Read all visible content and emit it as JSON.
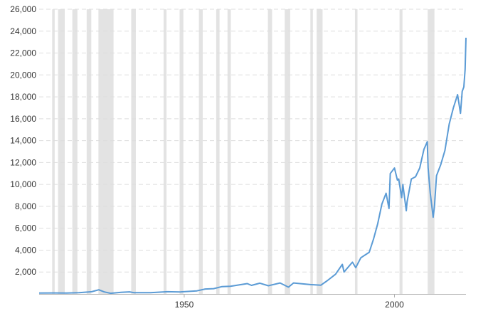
{
  "chart_data": {
    "type": "line",
    "title": "",
    "xlabel": "",
    "ylabel": "",
    "xlim": [
      1915.5,
      2017
    ],
    "ylim": [
      0,
      26000
    ],
    "grid": {
      "horizontal": true,
      "vertical": false,
      "style": "dashed"
    },
    "x_ticks": [
      1950,
      2000
    ],
    "x_tick_labels": [
      "1950",
      "2000"
    ],
    "y_ticks": [
      2000,
      4000,
      6000,
      8000,
      10000,
      12000,
      14000,
      16000,
      18000,
      20000,
      22000,
      24000,
      26000
    ],
    "y_tick_labels": [
      "2,000",
      "4,000",
      "6,000",
      "8,000",
      "10,000",
      "12,000",
      "14,000",
      "16,000",
      "18,000",
      "20,000",
      "22,000",
      "24,000",
      "26,000"
    ],
    "colors": {
      "line": "#5b9bd5",
      "recession_band": "#e3e3e3",
      "grid": "#dddddd",
      "axis": "#b0b0b0"
    },
    "recession_periods": [
      [
        1918.6,
        1919.2
      ],
      [
        1920.0,
        1921.6
      ],
      [
        1923.4,
        1924.6
      ],
      [
        1926.8,
        1927.9
      ],
      [
        1929.6,
        1933.2
      ],
      [
        1937.4,
        1938.5
      ],
      [
        1945.1,
        1945.8
      ],
      [
        1948.9,
        1949.8
      ],
      [
        1953.5,
        1954.4
      ],
      [
        1957.6,
        1958.4
      ],
      [
        1960.3,
        1961.1
      ],
      [
        1969.9,
        1970.9
      ],
      [
        1973.9,
        1975.2
      ],
      [
        1980.0,
        1980.6
      ],
      [
        1981.5,
        1982.9
      ],
      [
        1990.6,
        1991.2
      ],
      [
        2001.2,
        2001.9
      ],
      [
        2007.9,
        2009.5
      ]
    ],
    "series": [
      {
        "x": [
          1915.5,
          1919,
          1922,
          1925,
          1928,
          1929.7,
          1931,
          1932.5,
          1935,
          1937,
          1938,
          1942,
          1946,
          1949,
          1953,
          1955,
          1957,
          1959,
          1961,
          1965,
          1966,
          1968,
          1970,
          1972.8,
          1974.8,
          1976,
          1980,
          1982.5,
          1984,
          1986,
          1987.6,
          1988,
          1990,
          1990.8,
          1992,
          1994,
          1995,
          1996,
          1997,
          1998,
          1998.7,
          1999,
          2000,
          2000.7,
          2001,
          2001.7,
          2002,
          2002.8,
          2003,
          2004,
          2005,
          2006,
          2007,
          2007.8,
          2008,
          2008.5,
          2009.2,
          2009.5,
          2010,
          2011,
          2012,
          2013,
          2014,
          2015,
          2015.7,
          2016.1,
          2016.5,
          2016.8,
          2017
        ],
        "y": [
          80,
          90,
          80,
          110,
          200,
          380,
          180,
          60,
          150,
          190,
          120,
          110,
          200,
          180,
          280,
          450,
          480,
          670,
          700,
          940,
          780,
          980,
          750,
          1000,
          620,
          1000,
          850,
          800,
          1200,
          1800,
          2700,
          2000,
          2900,
          2400,
          3300,
          3800,
          5000,
          6400,
          8200,
          9200,
          7800,
          11000,
          11500,
          10400,
          10500,
          8800,
          10000,
          7600,
          8400,
          10500,
          10700,
          11500,
          13200,
          13900,
          11500,
          9200,
          7000,
          8000,
          10800,
          11800,
          13100,
          15500,
          17000,
          18200,
          16500,
          18500,
          18900,
          20500,
          23400
        ]
      }
    ]
  }
}
